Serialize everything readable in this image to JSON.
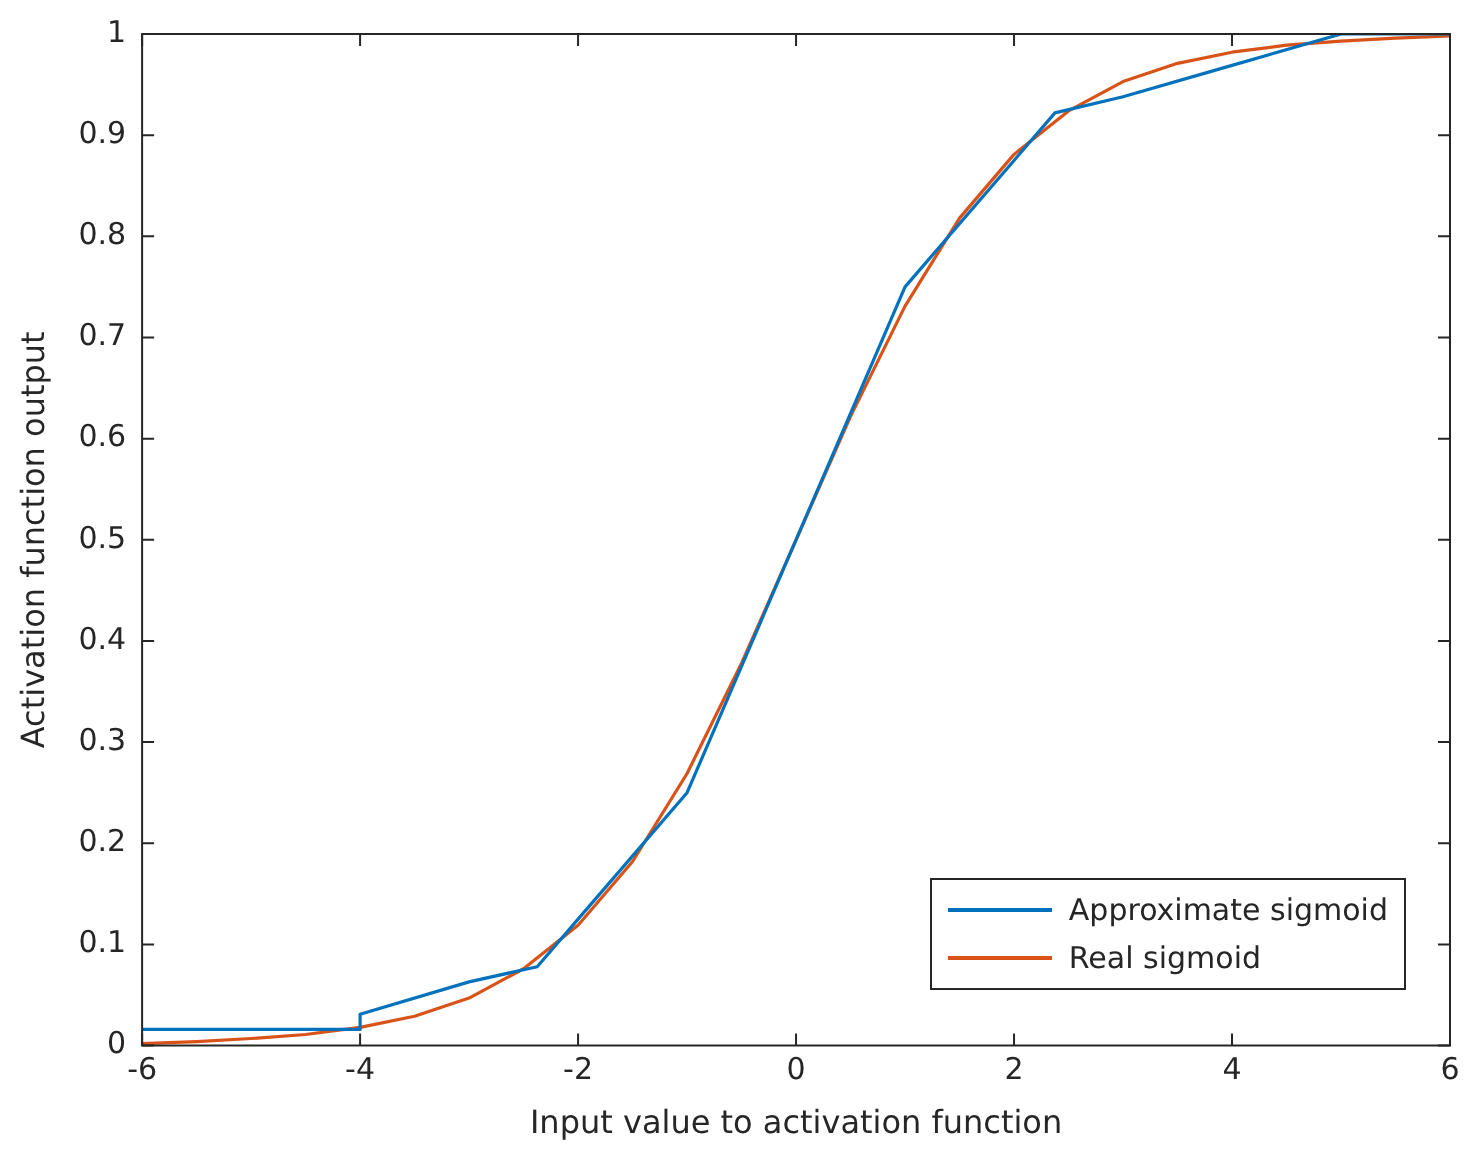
{
  "chart_data": {
    "type": "line",
    "xlabel": "Input value to activation function",
    "ylabel": "Activation function output",
    "xlim": [
      -6,
      6
    ],
    "xticks": [
      -6,
      -4,
      -2,
      0,
      2,
      4,
      6
    ],
    "ylim": [
      0,
      1
    ],
    "yticks": [
      0,
      0.1,
      0.2,
      0.3,
      0.4,
      0.5,
      0.6,
      0.7,
      0.8,
      0.9,
      1
    ],
    "grid": false,
    "legend": "bottom right",
    "marker": "none",
    "line_style": "solid",
    "series": [
      {
        "name": "Approximate sigmoid",
        "color": "#0072bd",
        "x": [
          -6,
          -4,
          -4,
          -3,
          -2.375,
          -2,
          -1,
          1,
          2,
          2.375,
          3,
          4,
          5,
          6
        ],
        "values": [
          0.016,
          0.016,
          0.031,
          0.063,
          0.078,
          0.125,
          0.25,
          0.75,
          0.875,
          0.922,
          0.938,
          0.969,
          1,
          1
        ]
      },
      {
        "name": "Real sigmoid",
        "color": "#d95319",
        "x": [
          -6,
          -5.5,
          -5,
          -4.5,
          -4,
          -3.5,
          -3,
          -2.5,
          -2,
          -1.5,
          -1,
          -0.5,
          0,
          0.5,
          1,
          1.5,
          2,
          2.5,
          3,
          3.5,
          4,
          4.5,
          5,
          5.5,
          6
        ],
        "values": [
          0.002,
          0.004,
          0.007,
          0.011,
          0.018,
          0.029,
          0.047,
          0.076,
          0.119,
          0.182,
          0.269,
          0.378,
          0.5,
          0.622,
          0.731,
          0.818,
          0.881,
          0.924,
          0.953,
          0.971,
          0.982,
          0.989,
          0.993,
          0.996,
          0.998
        ]
      }
    ]
  }
}
